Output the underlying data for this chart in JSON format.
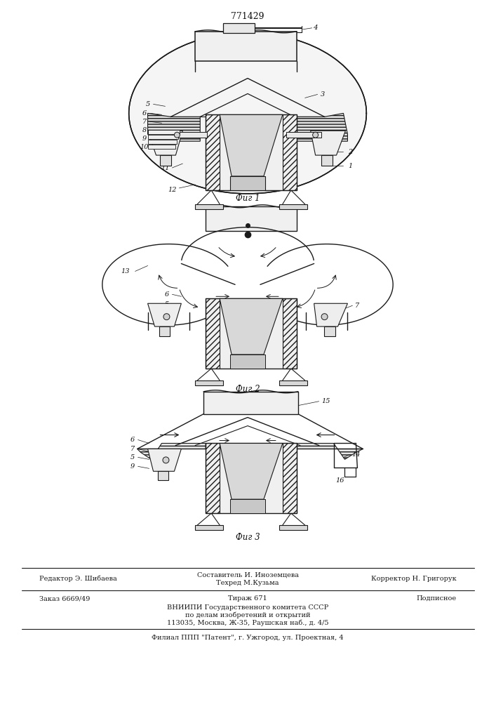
{
  "patent_number": "771429",
  "background_color": "#ffffff",
  "fig_label_1": "Фиг 1",
  "fig_label_2": "Фиг 2",
  "fig_label_3": "Фиг 3",
  "footer_line1_left": "Редактор Э. Шибаева",
  "footer_line1_center1": "Составитель И. Иноземцева",
  "footer_line1_center2": "Техред М.Кузьма",
  "footer_line1_right": "Корректор Н. Григорук",
  "footer_line2_left": "Заказ 6669/49",
  "footer_line2_center": "Тираж 671",
  "footer_line2_right": "Подписное",
  "footer_line3": "ВНИИПИ Государственного комитета СССР",
  "footer_line4": "по делам изобретений и открытий",
  "footer_line5": "113035, Москва, Ж-35, Раушская наб., д. 4/5",
  "footer_line6": "Филиал ППП \"Патент\", г. Ужгород, ул. Проектная, 4",
  "line_color": "#1a1a1a",
  "label_color": "#111111"
}
